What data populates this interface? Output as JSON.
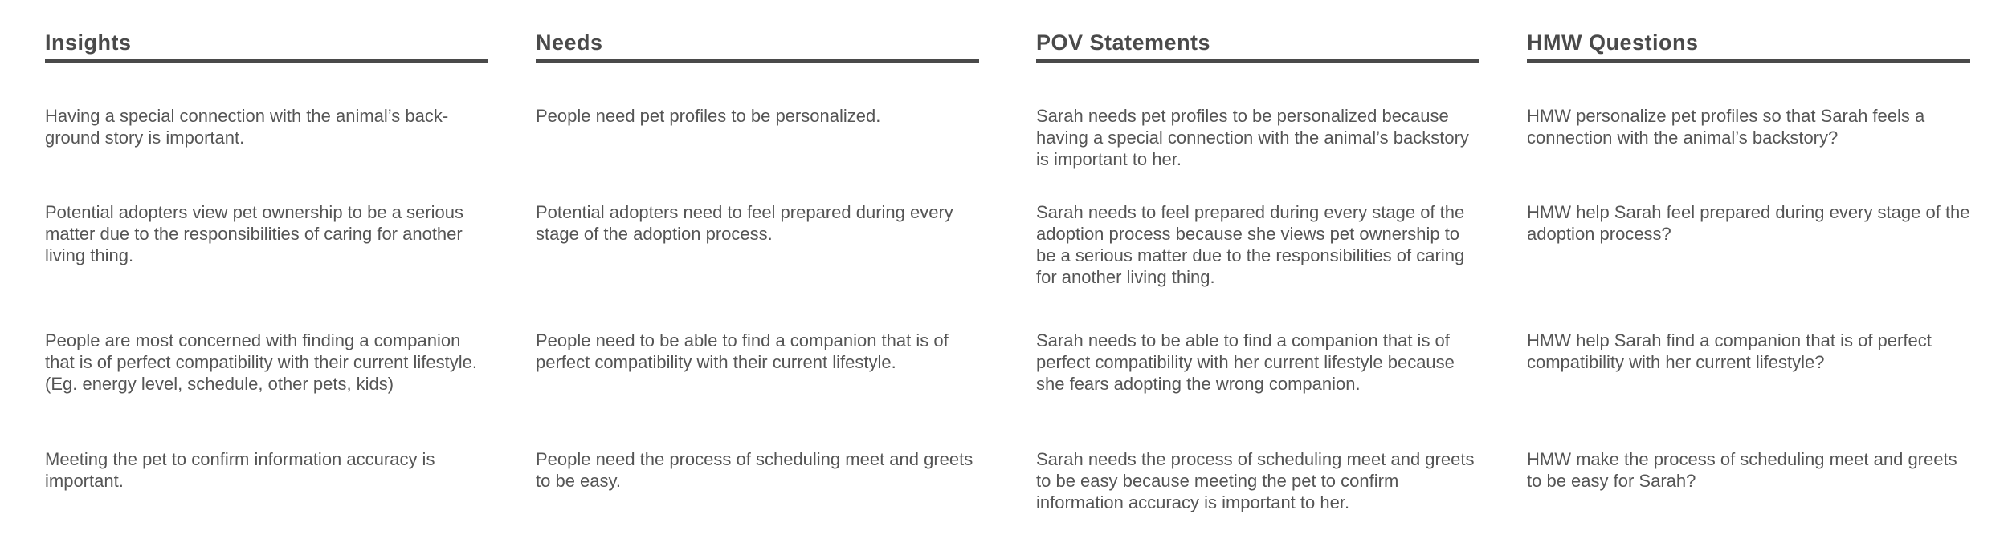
{
  "columns": [
    {
      "header": "Insights",
      "cells": [
        "Having a special connection with the animal’s back-ground story is important.",
        "Potential adopters view pet ownership to be a serious matter due to the responsibilities of caring for another living thing.",
        "People are most concerned with finding a companion that is of perfect compatibility with their current lifestyle. (Eg. energy level, schedule, other pets, kids)",
        "Meeting the pet to confirm information accuracy is important."
      ]
    },
    {
      "header": "Needs",
      "cells": [
        "People need pet profiles to be personalized.",
        "Potential adopters need to feel prepared during every stage of the adoption process.",
        "People need to be able to find a companion that is of perfect compatibility with their current lifestyle.",
        "People need the process of scheduling meet and greets to be easy."
      ]
    },
    {
      "header": "POV Statements",
      "cells": [
        "Sarah needs pet profiles to be personalized because having a special connection with the animal’s backstory is important to her.",
        "Sarah needs to feel prepared during every stage of the adoption process because she views pet ownership to be a serious matter due to the responsibilities of caring for another living thing.",
        "Sarah needs to be able to find a companion that is of perfect compatibility with her current lifestyle because she fears adopting the wrong companion.",
        "Sarah needs the process of scheduling meet and greets to be easy because meeting the pet to confirm information accuracy is important to her."
      ]
    },
    {
      "header": "HMW Questions",
      "cells": [
        "HMW personalize pet profiles so that Sarah feels a connection with the animal’s backstory?",
        "HMW help Sarah feel prepared during every stage of the adoption process?",
        "HMW help Sarah find a companion that is of perfect compatibility with her current lifestyle?",
        "HMW make the process of scheduling meet and greets to be easy for Sarah?"
      ]
    }
  ]
}
